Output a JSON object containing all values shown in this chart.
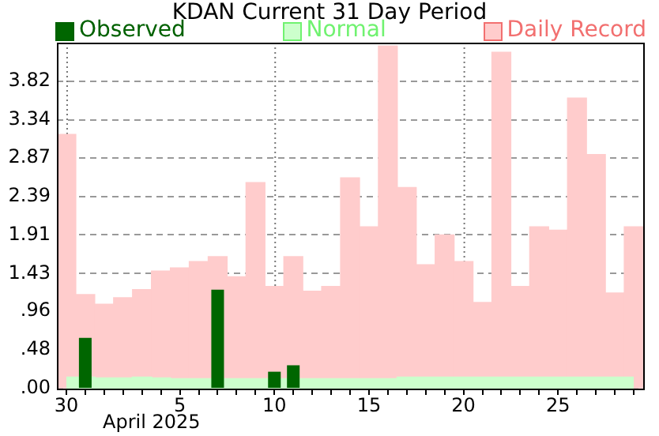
{
  "chart_data": {
    "type": "bar",
    "title": "KDAN Current 31 Day Period",
    "xlabel": "April 2025",
    "categories": [
      "30",
      null,
      null,
      null,
      null,
      null,
      "5",
      null,
      null,
      null,
      null,
      "10",
      null,
      null,
      null,
      null,
      "15",
      null,
      null,
      null,
      null,
      "20",
      null,
      null,
      null,
      null,
      "25",
      null,
      null,
      null,
      null
    ],
    "series": [
      {
        "name": "Observed",
        "color": "#006600",
        "values": [
          0,
          0.63,
          0,
          0,
          0,
          0,
          0,
          0,
          1.23,
          0,
          0,
          0.21,
          0.29,
          0,
          0,
          0,
          0,
          0,
          0,
          0,
          0,
          0,
          0,
          0,
          0,
          0,
          0,
          0,
          0,
          0,
          0
        ]
      },
      {
        "name": "Normal",
        "type": "area",
        "color": "#ccffcc",
        "values": [
          0.14,
          0.14,
          0.13,
          0.13,
          0.14,
          0.13,
          0.12,
          0.12,
          0.12,
          0.12,
          0.12,
          0.12,
          0.12,
          0.12,
          0.12,
          0.12,
          0.12,
          0.12,
          0.14,
          0.14,
          0.14,
          0.14,
          0.14,
          0.14,
          0.14,
          0.14,
          0.14,
          0.14,
          0.14,
          0.14,
          0.14
        ]
      },
      {
        "name": "Daily Record",
        "color": "#ffcccc",
        "values": [
          3.16,
          1.17,
          1.05,
          1.13,
          1.23,
          1.46,
          1.5,
          1.58,
          1.64,
          1.39,
          2.56,
          1.27,
          1.64,
          1.21,
          1.27,
          2.62,
          2.01,
          4.26,
          2.5,
          1.54,
          1.91,
          1.58,
          1.07,
          4.18,
          1.27,
          2.01,
          1.97,
          3.61,
          2.91,
          1.19,
          2.01
        ]
      }
    ],
    "ylim": [
      0,
      4.3
    ],
    "yticks": [
      {
        "value": 0,
        "label": ".00"
      },
      {
        "value": 0.48,
        "label": ".48"
      },
      {
        "value": 0.96,
        "label": ".96"
      },
      1.43,
      1.91,
      2.39,
      2.87,
      3.34,
      3.82
    ],
    "grid": "y",
    "legend": "top",
    "ref_lines": [
      {
        "axis": "x",
        "value": "30",
        "line_style": "dotted"
      },
      {
        "axis": "x",
        "value": "10",
        "line_style": "dotted"
      },
      {
        "axis": "x",
        "value": "20",
        "line_style": "dotted"
      }
    ]
  }
}
